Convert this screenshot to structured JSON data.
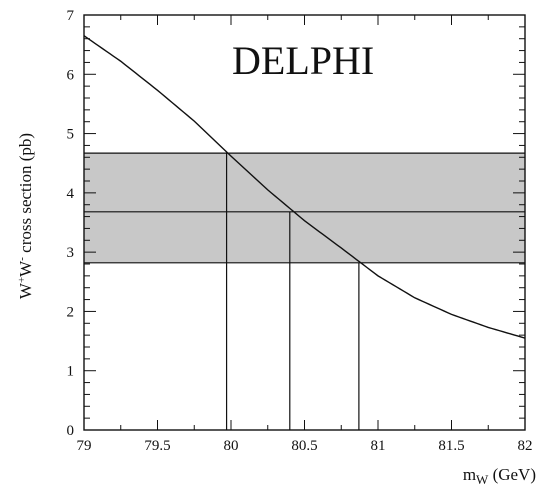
{
  "chart_data": {
    "type": "line",
    "title": "",
    "annotation": "DELPHI",
    "xlabel": "m_W (GeV)",
    "ylabel": "W⁺W⁻ cross section (pb)",
    "xlim": [
      79,
      82
    ],
    "ylim": [
      0,
      7
    ],
    "xticks": [
      "79",
      "79.5",
      "80",
      "80.5",
      "81",
      "81.5",
      "82"
    ],
    "yticks": [
      "0",
      "1",
      "2",
      "3",
      "4",
      "5",
      "6",
      "7"
    ],
    "grid": false,
    "series": [
      {
        "x": [
          79.0,
          79.25,
          79.5,
          79.75,
          80.0,
          80.25,
          80.5,
          80.75,
          81.0,
          81.25,
          81.5,
          81.75,
          82.0
        ],
        "y": [
          6.65,
          6.22,
          5.73,
          5.21,
          4.62,
          4.05,
          3.53,
          3.07,
          2.6,
          2.23,
          1.95,
          1.73,
          1.55
        ]
      }
    ],
    "measurement": {
      "central": 3.68,
      "low": 2.82,
      "high": 4.67
    },
    "mass_intersections": [
      79.97,
      80.4,
      80.87
    ],
    "band_color": "#c8c8c8",
    "line_color": "#111111"
  }
}
